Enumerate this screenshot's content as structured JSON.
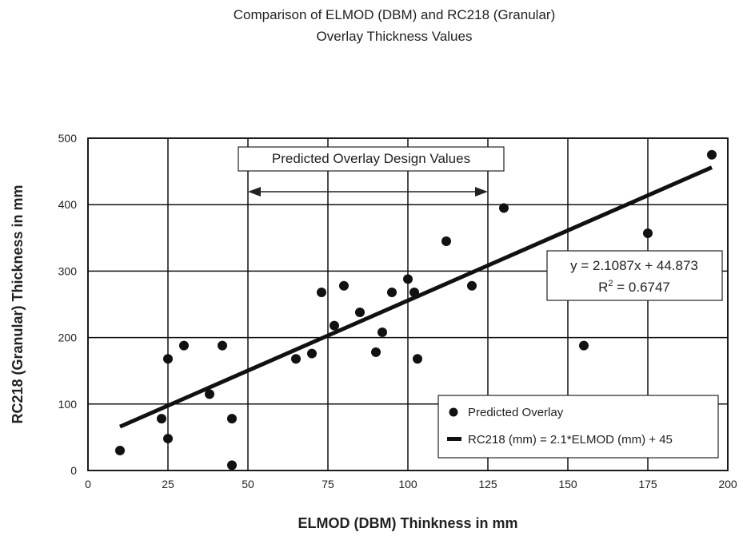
{
  "chart_data": {
    "type": "scatter",
    "title_lines": [
      "Comparison of ELMOD (DBM) and RC218 (Granular)",
      "Overlay Thickness Values"
    ],
    "xlabel": "ELMOD (DBM) Thinkness in mm",
    "ylabel": "RC218 (Granular) Thickness in mm",
    "xlim": [
      0,
      200
    ],
    "ylim": [
      0,
      500
    ],
    "xticks": [
      0,
      25,
      50,
      75,
      100,
      125,
      150,
      175,
      200
    ],
    "yticks": [
      0,
      100,
      200,
      300,
      400,
      500
    ],
    "grid": true,
    "series": [
      {
        "name": "Predicted Overlay",
        "kind": "points",
        "points": [
          [
            10,
            30
          ],
          [
            23,
            78
          ],
          [
            25,
            48
          ],
          [
            25,
            168
          ],
          [
            30,
            188
          ],
          [
            38,
            115
          ],
          [
            42,
            188
          ],
          [
            45,
            78
          ],
          [
            45,
            8
          ],
          [
            65,
            168
          ],
          [
            70,
            176
          ],
          [
            73,
            268
          ],
          [
            77,
            218
          ],
          [
            80,
            278
          ],
          [
            85,
            238
          ],
          [
            90,
            178
          ],
          [
            92,
            208
          ],
          [
            95,
            268
          ],
          [
            100,
            288
          ],
          [
            102,
            268
          ],
          [
            103,
            168
          ],
          [
            112,
            345
          ],
          [
            120,
            278
          ],
          [
            130,
            395
          ],
          [
            155,
            188
          ],
          [
            175,
            357
          ],
          [
            195,
            475
          ]
        ]
      },
      {
        "name": "RC218 (mm) = 2.1*ELMOD (mm) + 45",
        "kind": "line",
        "slope": 2.1087,
        "intercept": 44.873,
        "x_range": [
          10,
          195
        ]
      }
    ],
    "annotations": {
      "range_label": "Predicted Overlay Design Values",
      "range_x": [
        50,
        125
      ],
      "equation": "y = 2.1087x + 44.873",
      "r2_prefix": "R",
      "r2_sup": "2",
      "r2_value": " = 0.6747"
    },
    "legend_placement": "bottom-right"
  }
}
